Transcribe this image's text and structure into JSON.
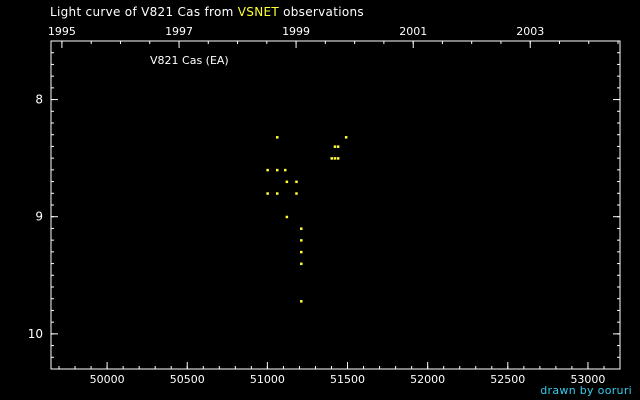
{
  "title": {
    "prefix": "Light curve of V821 Cas from",
    "source": "VSNET",
    "suffix": "observations"
  },
  "credit": "drawn by ooruri",
  "colors": {
    "background": "#000000",
    "frame": "#ffffff",
    "points": "#ffff33",
    "source": "#ffff33",
    "credit": "#33ccee"
  },
  "chart_data": {
    "type": "scatter",
    "plot_label": "V821 Cas (EA)",
    "x_axis_bottom": {
      "lim": [
        49650,
        53200
      ],
      "ticks": [
        50000,
        50500,
        51000,
        51500,
        52000,
        52500,
        53000
      ],
      "tick_labels": [
        "50000",
        "50500",
        "51000",
        "51500",
        "52000",
        "52500",
        "53000"
      ],
      "minor_step": 100
    },
    "x_axis_top": {
      "tick_labels": [
        "1995",
        "1997",
        "1999",
        "2001",
        "2003"
      ],
      "tick_positions_jd": [
        49718,
        50449,
        51179,
        51910,
        52640
      ]
    },
    "y_axis": {
      "lim": [
        10.3,
        7.5
      ],
      "inverted": true,
      "ticks": [
        8,
        9,
        10
      ],
      "tick_labels": [
        "8",
        "9",
        "10"
      ],
      "minor_step": 0.1
    },
    "grid": false,
    "points": [
      {
        "x": 51060,
        "y": 8.32
      },
      {
        "x": 51000,
        "y": 8.6
      },
      {
        "x": 51060,
        "y": 8.6
      },
      {
        "x": 51110,
        "y": 8.6
      },
      {
        "x": 51120,
        "y": 8.7
      },
      {
        "x": 51180,
        "y": 8.7
      },
      {
        "x": 51000,
        "y": 8.8
      },
      {
        "x": 51060,
        "y": 8.8
      },
      {
        "x": 51180,
        "y": 8.8
      },
      {
        "x": 51120,
        "y": 9.0
      },
      {
        "x": 51210,
        "y": 9.1
      },
      {
        "x": 51210,
        "y": 9.2
      },
      {
        "x": 51210,
        "y": 9.3
      },
      {
        "x": 51210,
        "y": 9.4
      },
      {
        "x": 51210,
        "y": 9.72
      },
      {
        "x": 51490,
        "y": 8.32
      },
      {
        "x": 51420,
        "y": 8.4
      },
      {
        "x": 51440,
        "y": 8.4
      },
      {
        "x": 51400,
        "y": 8.5
      },
      {
        "x": 51420,
        "y": 8.5
      },
      {
        "x": 51440,
        "y": 8.5
      }
    ]
  }
}
